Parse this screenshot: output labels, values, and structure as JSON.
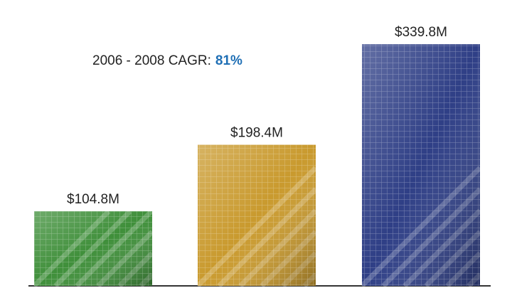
{
  "chart_data": {
    "type": "bar",
    "annotation": [
      "2006 - 2008 CAGR:",
      "81%"
    ],
    "categories": [
      null,
      null,
      null
    ],
    "values": [
      104.8,
      198.4,
      339.8
    ],
    "value_labels": [
      "$104.8M",
      "$198.4M",
      "$339.8M"
    ],
    "colors": [
      "#3f8f3a",
      "#c99a2e",
      "#2f3f86"
    ],
    "annotation_color": "#1f6fb5",
    "ylim": [
      0,
      400
    ]
  }
}
